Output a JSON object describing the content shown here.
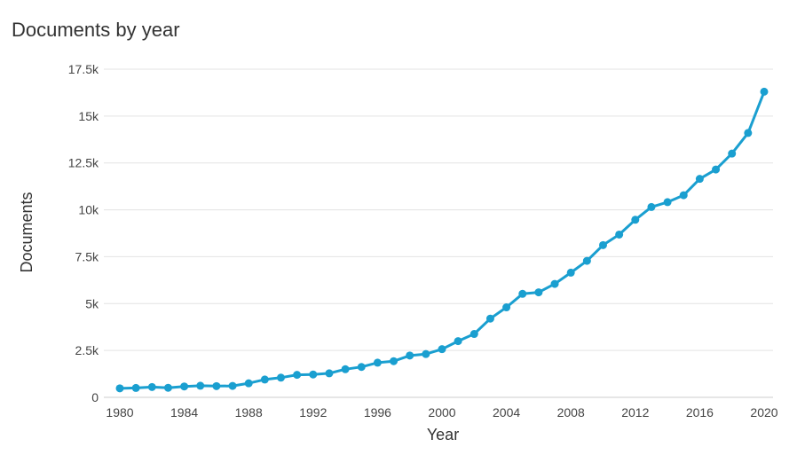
{
  "chart_data": {
    "type": "line",
    "title": "Documents by year",
    "xlabel": "Year",
    "ylabel": "Documents",
    "xlim": [
      1980,
      2020
    ],
    "ylim": [
      0,
      17500
    ],
    "x_ticks": [
      1980,
      1984,
      1988,
      1992,
      1996,
      2000,
      2004,
      2008,
      2012,
      2016,
      2020
    ],
    "y_ticks": [
      0,
      2500,
      5000,
      7500,
      10000,
      12500,
      15000,
      17500
    ],
    "y_tick_labels": [
      "0",
      "2.5k",
      "5k",
      "7.5k",
      "10k",
      "12.5k",
      "15k",
      "17.5k"
    ],
    "grid": true,
    "legend": "none",
    "color": "#1a9fd0",
    "series": [
      {
        "x": [
          1980,
          1981,
          1982,
          1983,
          1984,
          1985,
          1986,
          1987,
          1988,
          1989,
          1990,
          1991,
          1992,
          1993,
          1994,
          1995,
          1996,
          1997,
          1998,
          1999,
          2000,
          2001,
          2002,
          2003,
          2004,
          2005,
          2006,
          2007,
          2008,
          2009,
          2010,
          2011,
          2012,
          2013,
          2014,
          2015,
          2016,
          2017,
          2018,
          2019,
          2020
        ],
        "values": [
          480,
          500,
          550,
          510,
          580,
          620,
          600,
          610,
          750,
          950,
          1050,
          1200,
          1220,
          1280,
          1500,
          1620,
          1850,
          1930,
          2230,
          2310,
          2570,
          3000,
          3380,
          4200,
          4800,
          5520,
          5600,
          6050,
          6650,
          7280,
          8120,
          8680,
          9470,
          10150,
          10410,
          10780,
          11650,
          12150,
          13000,
          14100,
          16300
        ]
      }
    ]
  }
}
